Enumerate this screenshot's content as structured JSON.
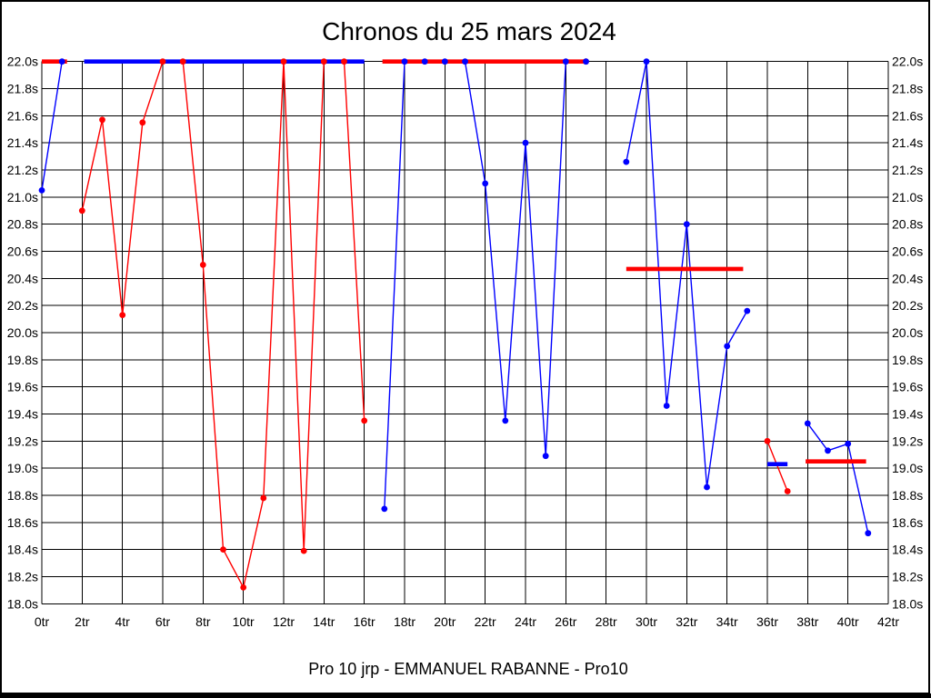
{
  "page": {
    "title": "Chronos du 25 mars 2024",
    "caption": "Pro 10 jrp - EMMANUEL RABANNE - Pro10"
  },
  "chart_data": {
    "type": "line",
    "title": "Chronos du 25 mars 2024",
    "caption": "Pro 10 jrp - EMMANUEL RABANNE - Pro10",
    "x_unit": "tr",
    "y_unit": "s",
    "xlim": [
      0,
      42
    ],
    "ylim": [
      18.0,
      22.0
    ],
    "x_tick_step": 2,
    "y_tick_step": 0.2,
    "grid": true,
    "x_tick_labels": [
      "0tr",
      "2tr",
      "4tr",
      "6tr",
      "8tr",
      "10tr",
      "12tr",
      "14tr",
      "16tr",
      "18tr",
      "20tr",
      "22tr",
      "24tr",
      "26tr",
      "28tr",
      "30tr",
      "32tr",
      "34tr",
      "36tr",
      "38tr",
      "40tr",
      "42tr"
    ],
    "y_tick_labels": [
      "18.0s",
      "18.2s",
      "18.4s",
      "18.6s",
      "18.8s",
      "19.0s",
      "19.2s",
      "19.4s",
      "19.6s",
      "19.8s",
      "20.0s",
      "20.2s",
      "20.4s",
      "20.6s",
      "20.8s",
      "21.0s",
      "21.2s",
      "21.4s",
      "21.6s",
      "21.8s",
      "22.0s"
    ],
    "series": [
      {
        "name": "bleu",
        "color": "#0000ff",
        "segments": [
          [
            [
              0,
              21.05
            ],
            [
              1,
              22.0
            ]
          ],
          [
            [
              17,
              18.7
            ],
            [
              18,
              22.0
            ],
            [
              19,
              22.0
            ],
            [
              20,
              22.0
            ],
            [
              21,
              22.0
            ],
            [
              22,
              21.1
            ],
            [
              23,
              19.35
            ],
            [
              24,
              21.4
            ],
            [
              25,
              19.09
            ],
            [
              26,
              22.0
            ],
            [
              27,
              22.0
            ]
          ],
          [
            [
              29,
              21.26
            ],
            [
              30,
              22.0
            ],
            [
              31,
              19.46
            ],
            [
              32,
              20.8
            ],
            [
              33,
              18.86
            ],
            [
              34,
              19.9
            ],
            [
              35,
              20.16
            ]
          ],
          [
            [
              38,
              19.33
            ],
            [
              39,
              19.13
            ],
            [
              40,
              19.18
            ],
            [
              41,
              18.52
            ]
          ]
        ]
      },
      {
        "name": "rouge",
        "color": "#ff0000",
        "segments": [
          [
            [
              2,
              20.9
            ],
            [
              3,
              21.57
            ],
            [
              4,
              20.13
            ],
            [
              5,
              21.55
            ],
            [
              6,
              22.0
            ],
            [
              7,
              22.0
            ],
            [
              8,
              20.5
            ],
            [
              9,
              18.4
            ],
            [
              10,
              18.12
            ],
            [
              11,
              18.78
            ],
            [
              12,
              22.0
            ],
            [
              13,
              18.39
            ],
            [
              14,
              22.0
            ],
            [
              15,
              22.0
            ],
            [
              16,
              19.35
            ]
          ],
          [
            [
              27,
              22.0
            ]
          ],
          [
            [
              36,
              19.2
            ],
            [
              37,
              18.83
            ]
          ]
        ]
      }
    ],
    "marker_segments": [
      {
        "color": "#ff0000",
        "y": 22.0,
        "x_start": 0.0,
        "x_end": 1.25
      },
      {
        "color": "#0000ff",
        "y": 22.0,
        "x_start": 2.1,
        "x_end": 16.0
      },
      {
        "color": "#ff0000",
        "y": 22.0,
        "x_start": 16.9,
        "x_end": 27.0
      },
      {
        "color": "#ff0000",
        "y": 20.47,
        "x_start": 29.0,
        "x_end": 34.8
      },
      {
        "color": "#0000ff",
        "y": 19.03,
        "x_start": 36.0,
        "x_end": 37.0
      },
      {
        "color": "#ff0000",
        "y": 19.05,
        "x_start": 37.9,
        "x_end": 40.9
      }
    ]
  }
}
